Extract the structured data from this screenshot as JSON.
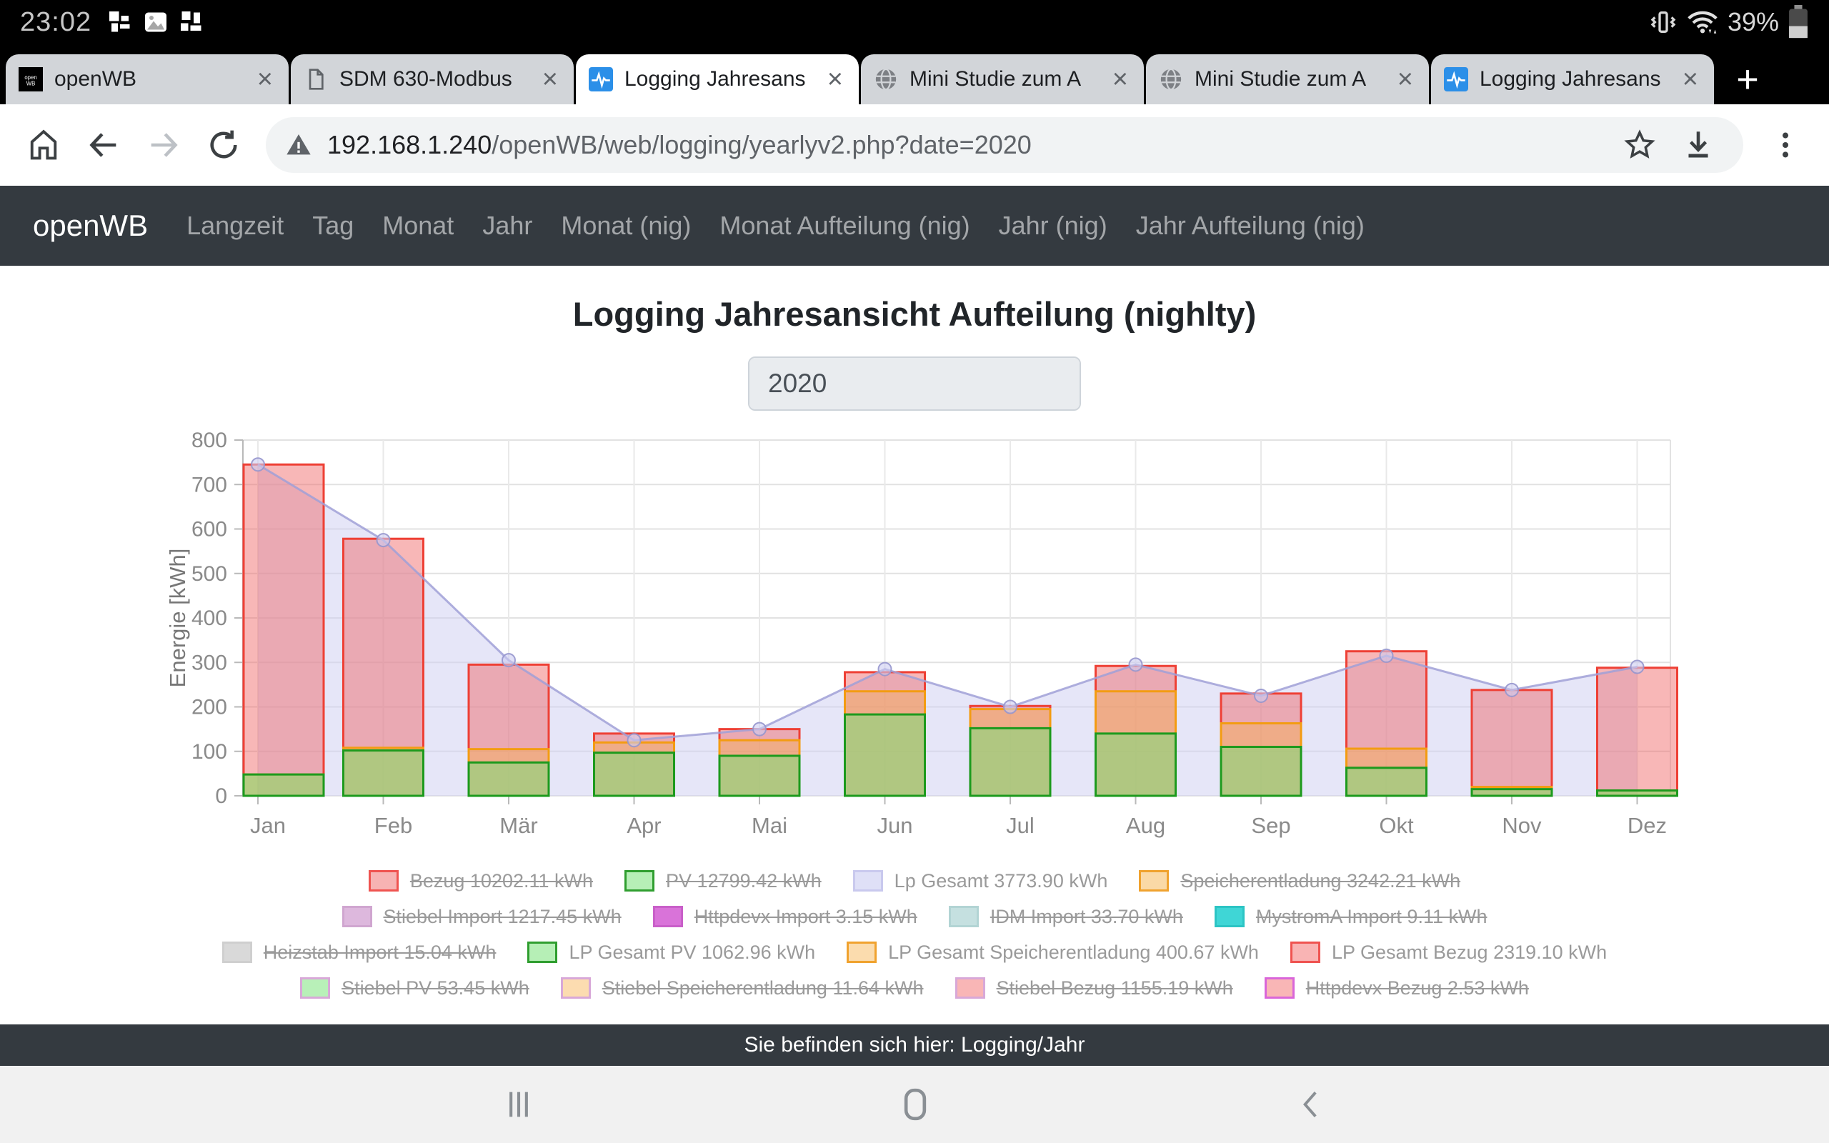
{
  "status_bar": {
    "time": "23:02",
    "battery_label": "39%"
  },
  "tab_strip": {
    "tabs": [
      {
        "label": "openWB",
        "icon": "openwb-favicon",
        "active": false
      },
      {
        "label": "SDM 630-Modbus",
        "icon": "document-icon",
        "active": false
      },
      {
        "label": "Logging Jahresans",
        "icon": "pulse-icon",
        "active": true
      },
      {
        "label": "Mini Studie zum A",
        "icon": "globe-icon",
        "active": false
      },
      {
        "label": "Mini Studie zum A",
        "icon": "globe-icon",
        "active": false
      },
      {
        "label": "Logging Jahresans",
        "icon": "pulse-icon",
        "active": false
      }
    ],
    "new_tab_label": "+"
  },
  "toolbar": {
    "url_host": "192.168.1.240",
    "url_path": "/openWB/web/logging/yearlyv2.php?date=2020"
  },
  "site_nav": {
    "brand": "openWB",
    "links": [
      "Langzeit",
      "Tag",
      "Monat",
      "Jahr",
      "Monat (nig)",
      "Monat Aufteilung (nig)",
      "Jahr (nig)",
      "Jahr Aufteilung (nig)"
    ]
  },
  "page": {
    "title": "Logging Jahresansicht Aufteilung (nighlty)",
    "year_value": "2020"
  },
  "chart_data": {
    "type": "mixed-bar-line",
    "categories": [
      "Jan",
      "Feb",
      "Mär",
      "Apr",
      "Mai",
      "Jun",
      "Jul",
      "Aug",
      "Sep",
      "Okt",
      "Nov",
      "Dez"
    ],
    "ylabel": "Energie [kWh]",
    "ylim": [
      0,
      800
    ],
    "ytick_step": 100,
    "grid": true,
    "series": [
      {
        "name": "LP Gesamt Bezug",
        "type": "bar",
        "values": [
          745,
          578,
          295,
          140,
          150,
          278,
          202,
          292,
          230,
          325,
          238,
          288
        ],
        "stroke": "#ee4035",
        "fill": "rgba(240,95,95,0.45)"
      },
      {
        "name": "LP Gesamt Speicherentladung",
        "type": "bar",
        "values": [
          48,
          108,
          105,
          120,
          125,
          235,
          195,
          235,
          163,
          106,
          20,
          12
        ],
        "stroke": "#f39c12",
        "fill": "rgba(247,177,72,0.40)"
      },
      {
        "name": "LP Gesamt PV",
        "type": "bar",
        "values": [
          48,
          102,
          75,
          97,
          90,
          183,
          152,
          140,
          110,
          63,
          15,
          12
        ],
        "stroke": "#1d9a1d",
        "fill": "rgba(124,223,124,0.55)"
      },
      {
        "name": "Lp Gesamt",
        "type": "line-area",
        "values": [
          745,
          575,
          305,
          125,
          150,
          285,
          200,
          295,
          225,
          315,
          238,
          290
        ],
        "stroke": "rgba(160,160,215,0.85)",
        "fill": "rgba(205,205,242,0.50)"
      }
    ]
  },
  "legend": {
    "rows": [
      [
        {
          "label": "Bezug 10202.11 kWh",
          "struck": true,
          "fill": "#f7b3b3",
          "border": "#ef5350"
        },
        {
          "label": "PV 12799.42 kWh",
          "struck": true,
          "fill": "#b6efb6",
          "border": "#2f9e2f"
        },
        {
          "label": "Lp Gesamt 3773.90 kWh",
          "struck": false,
          "fill": "#dfe0f7",
          "border": "#c9c9ee"
        },
        {
          "label": "Speicherentladung 3242.21 kWh",
          "struck": true,
          "fill": "#fad9a6",
          "border": "#f0a22e"
        }
      ],
      [
        {
          "label": "Stiebel Import 1217.45 kWh",
          "struck": true,
          "fill": "#ddb8dd",
          "border": "#d0a6d0"
        },
        {
          "label": "Httpdevx Import 3.15 kWh",
          "struck": true,
          "fill": "#d973d9",
          "border": "#c95fc9"
        },
        {
          "label": "IDM Import 33.70 kWh",
          "struck": true,
          "fill": "#c5e0e0",
          "border": "#b2d4d4"
        },
        {
          "label": "MystromA Import 9.11 kWh",
          "struck": true,
          "fill": "#3fd6d6",
          "border": "#2cc4c4"
        }
      ],
      [
        {
          "label": "Heizstab Import 15.04 kWh",
          "struck": true,
          "fill": "#d9d9d9",
          "border": "#cfcfcf"
        },
        {
          "label": "LP Gesamt PV 1062.96 kWh",
          "struck": false,
          "fill": "#b6efb6",
          "border": "#2f9e2f"
        },
        {
          "label": "LP Gesamt Speicherentladung 400.67 kWh",
          "struck": false,
          "fill": "#fbdcae",
          "border": "#f0a22e"
        },
        {
          "label": "LP Gesamt Bezug 2319.10 kWh",
          "struck": false,
          "fill": "#f9b4b4",
          "border": "#ef5350"
        }
      ],
      [
        {
          "label": "Stiebel PV 53.45 kWh",
          "struck": true,
          "fill": "#b8f0b8",
          "border": "#d8a8d8"
        },
        {
          "label": "Stiebel Speicherentladung 11.64 kWh",
          "struck": true,
          "fill": "#fcdcb0",
          "border": "#d8a8d8"
        },
        {
          "label": "Stiebel Bezug 1155.19 kWh",
          "struck": true,
          "fill": "#f9b6b6",
          "border": "#d8a8d8"
        },
        {
          "label": "Httpdevx Bezug 2.53 kWh",
          "struck": true,
          "fill": "#f9b6b6",
          "border": "#d966d9"
        }
      ]
    ]
  },
  "breadcrumb": {
    "text": "Sie befinden sich hier: Logging/Jahr"
  }
}
